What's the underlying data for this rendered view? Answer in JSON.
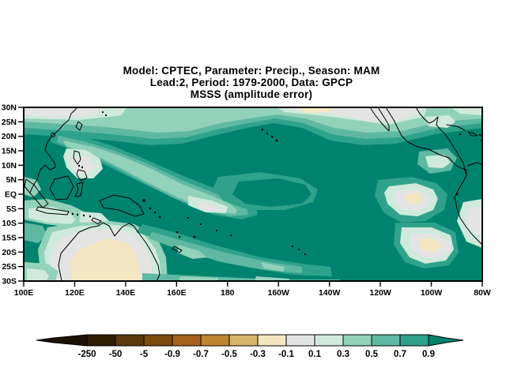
{
  "title": {
    "line1": "Model: CPTEC, Parameter: Precip., Season: MAM",
    "line2": "Lead:2, Period: 1979-2000, Data: GPCP",
    "line3": "MSSS (amplitude error)"
  },
  "palette": {
    "classes": [
      {
        "range": "< -250",
        "color": "#1a1004"
      },
      {
        "range": "-250 – -50",
        "color": "#2f1d06"
      },
      {
        "range": "-50 – -5",
        "color": "#5a3a0c"
      },
      {
        "range": "-5 – -0.9",
        "color": "#7c4a0a"
      },
      {
        "range": "-0.9 – -0.7",
        "color": "#a5601a"
      },
      {
        "range": "-0.7 – -0.5",
        "color": "#bf8630"
      },
      {
        "range": "-0.5 – -0.3",
        "color": "#d7b568"
      },
      {
        "range": "-0.3 – -0.1",
        "color": "#f2e7c2"
      },
      {
        "range": "-0.1 – 0.1",
        "color": "#e4e4e4"
      },
      {
        "range": "0.1 – 0.3",
        "color": "#cfeadc"
      },
      {
        "range": "0.3 – 0.5",
        "color": "#93d2ba"
      },
      {
        "range": "0.5 – 0.7",
        "color": "#5fb8a2"
      },
      {
        "range": "0.7 – 0.9",
        "color": "#2fa28b"
      },
      {
        "range": "> 0.9",
        "color": "#00836e"
      }
    ]
  },
  "chart_data": {
    "type": "heatmap",
    "subtype": "filled-contour-map",
    "title": "Model: CPTEC, Parameter: Precip., Season: MAM | Lead:2, Period: 1979-2000, Data: GPCP | MSSS (amplitude error)",
    "x_axis": {
      "label": "longitude",
      "ticks": [
        "100E",
        "120E",
        "140E",
        "160E",
        "180",
        "160W",
        "140W",
        "120W",
        "100W",
        "80W"
      ]
    },
    "y_axis": {
      "label": "latitude",
      "ticks": [
        "30N",
        "25N",
        "20N",
        "15N",
        "10N",
        "5N",
        "EQ",
        "5S",
        "10S",
        "15S",
        "20S",
        "25S",
        "30S"
      ]
    },
    "domain": {
      "lon_range": [
        "100E",
        "80W"
      ],
      "lat_range": [
        "30N",
        "30S"
      ]
    },
    "grid": false,
    "legend_position": "bottom-colorbar",
    "colorbar": {
      "levels": [
        "-250",
        "-50",
        "-5",
        "-0.9",
        "-0.7",
        "-0.5",
        "-0.3",
        "-0.1",
        "0.1",
        "0.3",
        "0.5",
        "0.7",
        "0.9"
      ],
      "colors": [
        "#1a1004",
        "#2f1d06",
        "#5a3a0c",
        "#7c4a0a",
        "#a5601a",
        "#bf8630",
        "#d7b568",
        "#f2e7c2",
        "#e4e4e4",
        "#cfeadc",
        "#93d2ba",
        "#5fb8a2",
        "#2fa28b",
        "#00836e"
      ]
    },
    "regions": [
      {
        "area": "most of tropical Pacific (10N-15S, 140E-90W)",
        "value": "> 0.9"
      },
      {
        "area": "northern edge band 25N-30N across map",
        "value": "0.1 - 0.5"
      },
      {
        "area": "NE Pacific patch (160W-110W, 22N-30N)",
        "value": "-0.1 - 0.1"
      },
      {
        "area": "around Philippines (118E-135E, 3N-15N)",
        "value": "-0.1 - 0.3"
      },
      {
        "area": "west-central equatorial swath (130E-180, 10N-8S)",
        "value": "0.1 - 0.7"
      },
      {
        "area": "Australia interior",
        "value": "-0.3 - 0.1"
      },
      {
        "area": "SE Pacific patches (115W-90W, 2S-20S)",
        "value": "-0.3 - 0.3"
      },
      {
        "area": "south-central diagonal (155E-140W, 10S-27S)",
        "value": "0.5 - 0.9"
      }
    ]
  }
}
